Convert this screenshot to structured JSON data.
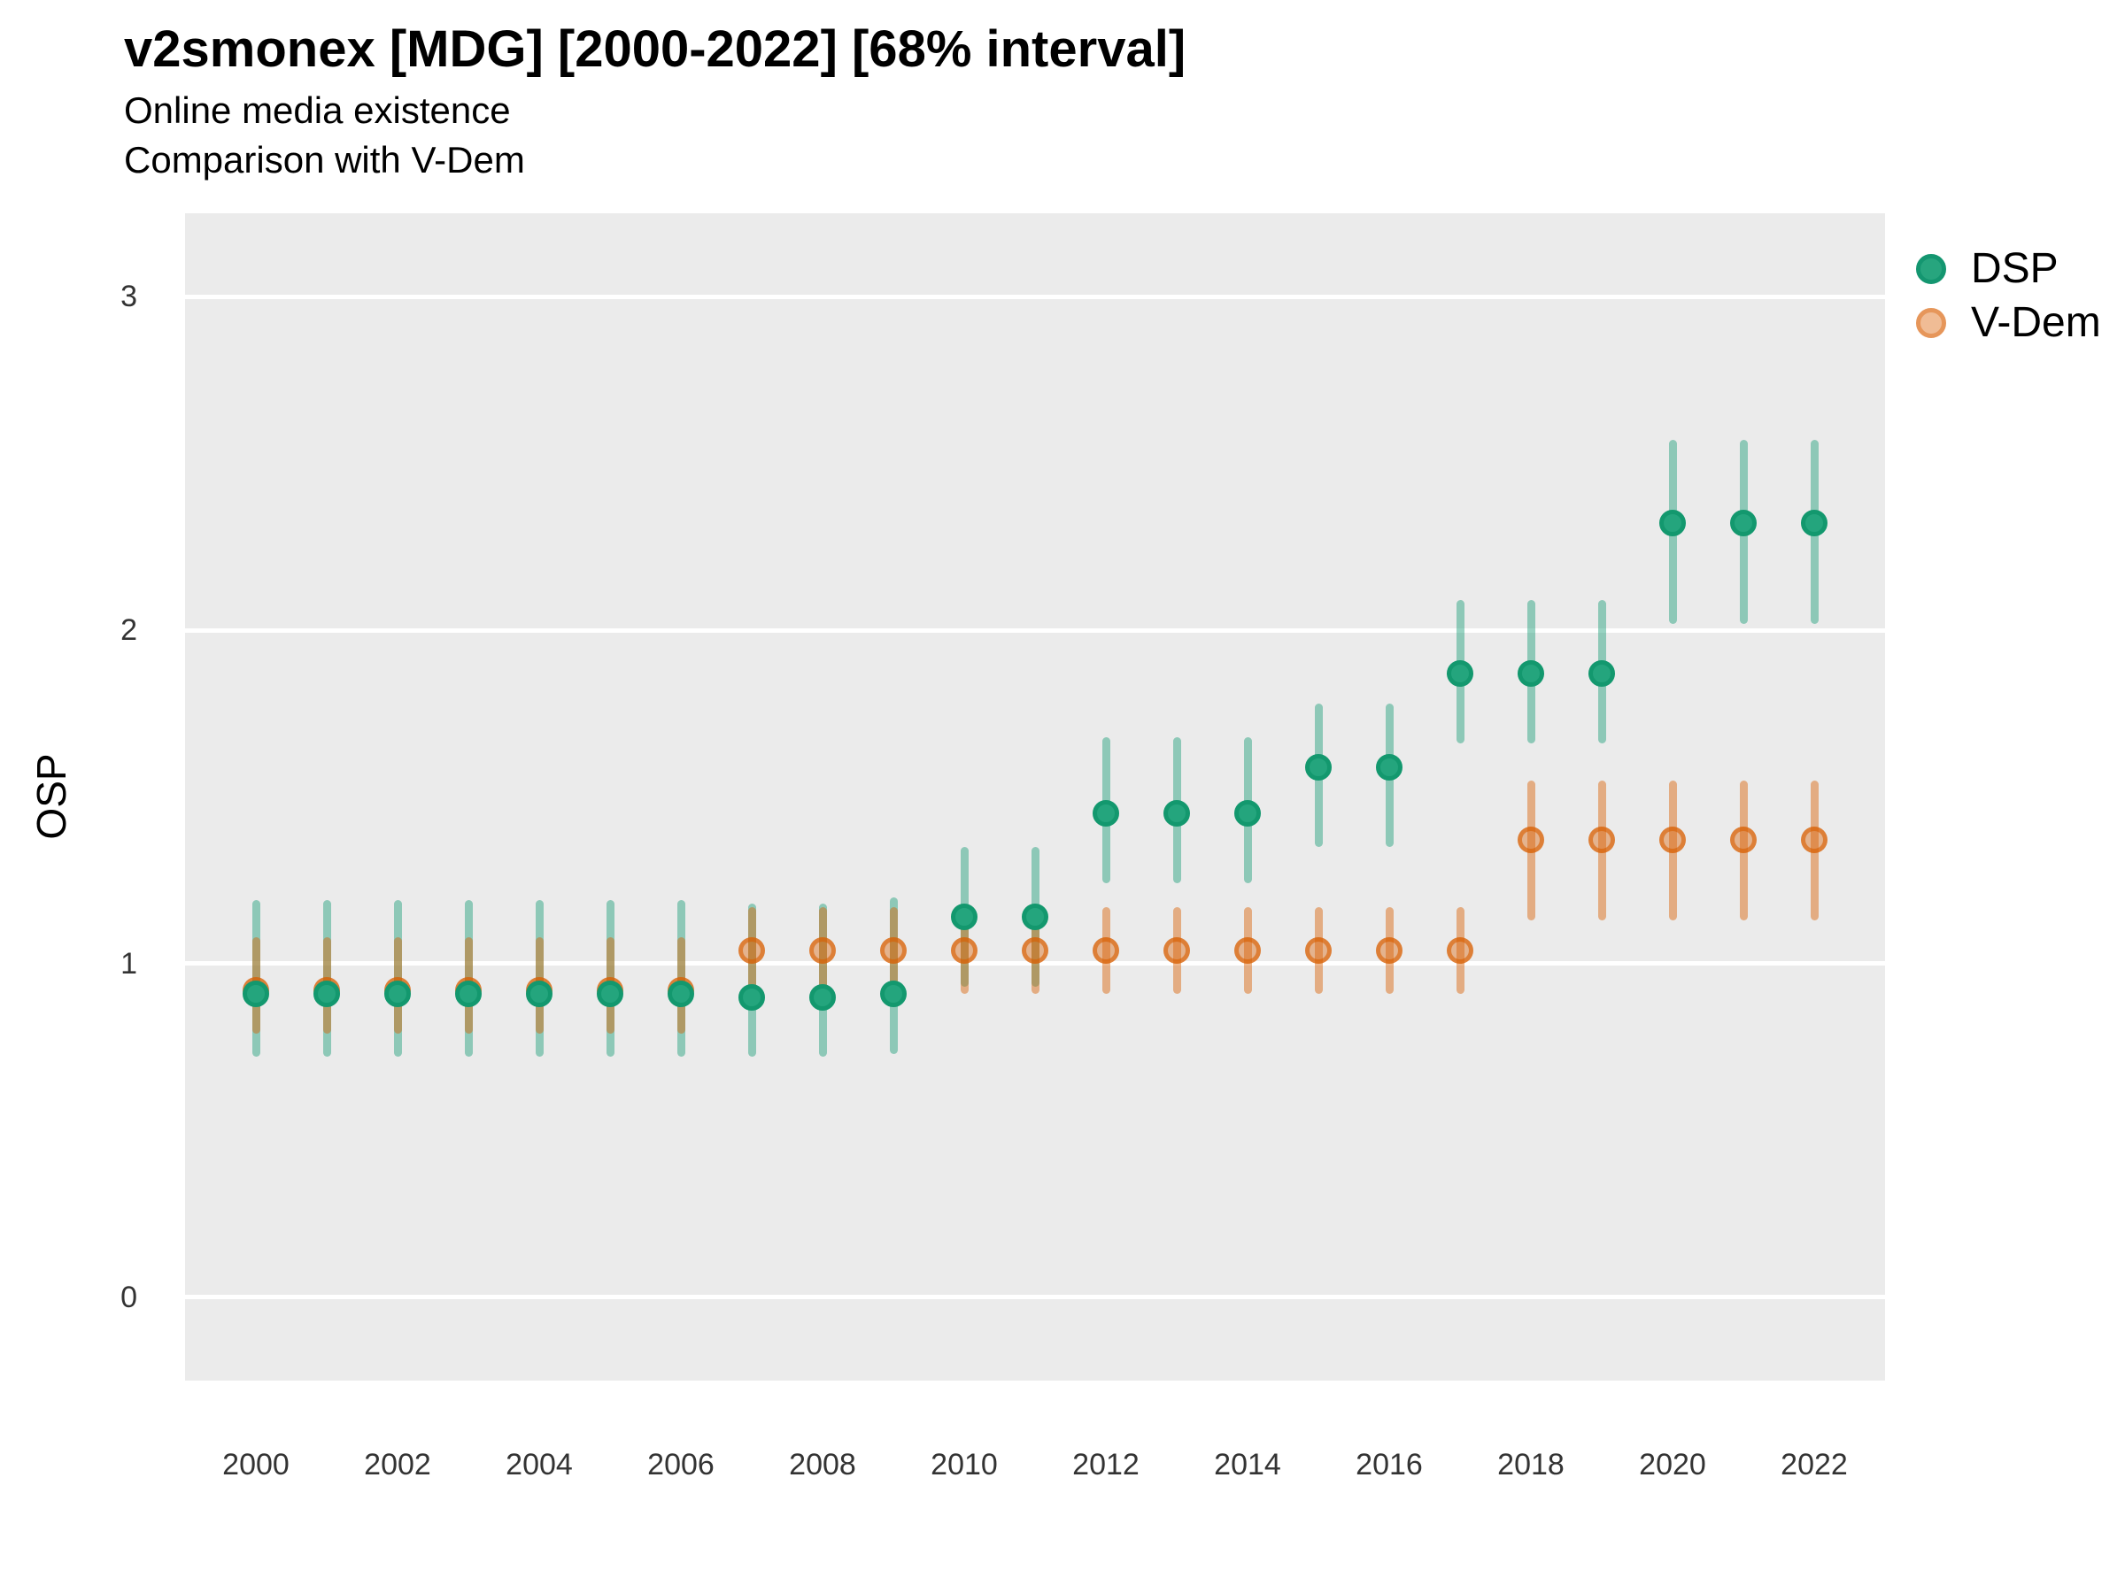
{
  "header": {
    "title": "v2smonex [MDG] [2000-2022] [68% interval]",
    "subtitle1": "Online media existence",
    "subtitle2": "Comparison with V-Dem"
  },
  "y_axis_title": "OSP",
  "legend": {
    "items": [
      {
        "label": "DSP"
      },
      {
        "label": "V-Dem"
      }
    ]
  },
  "colors": {
    "dsp": "#1B9E77",
    "vdem": "#D95F02",
    "panel_bg": "#EBEBEB",
    "gridline": "#FFFFFF",
    "axis_text": "#333333"
  },
  "chart_data": {
    "type": "scatter",
    "subtype": "pointrange",
    "title": "v2smonex [MDG] [2000-2022] [68% interval]",
    "subtitle": "Online media existence / Comparison with V-Dem",
    "interval": "68%",
    "xlabel": "",
    "ylabel": "OSP",
    "xlim": [
      1999,
      2023
    ],
    "ylim": [
      -0.25,
      3.25
    ],
    "yticks": [
      0,
      1,
      2,
      3
    ],
    "xticks": [
      2000,
      2002,
      2004,
      2006,
      2008,
      2010,
      2012,
      2014,
      2016,
      2018,
      2020,
      2022
    ],
    "grid": "major-horizontal-white-on-gray",
    "legend_position": "right-top",
    "x": [
      2000,
      2001,
      2002,
      2003,
      2004,
      2005,
      2006,
      2007,
      2008,
      2009,
      2010,
      2011,
      2012,
      2013,
      2014,
      2015,
      2016,
      2017,
      2018,
      2019,
      2020,
      2021,
      2022
    ],
    "series": [
      {
        "name": "DSP",
        "color": "#1B9E77",
        "est": [
          0.91,
          0.91,
          0.91,
          0.91,
          0.91,
          0.91,
          0.91,
          0.9,
          0.9,
          0.91,
          1.14,
          1.14,
          1.45,
          1.45,
          1.45,
          1.59,
          1.59,
          1.87,
          1.87,
          1.87,
          2.32,
          2.32,
          2.32
        ],
        "lo": [
          0.72,
          0.72,
          0.72,
          0.72,
          0.72,
          0.72,
          0.72,
          0.72,
          0.72,
          0.73,
          0.93,
          0.93,
          1.24,
          1.24,
          1.24,
          1.35,
          1.35,
          1.66,
          1.66,
          1.66,
          2.02,
          2.02,
          2.02
        ],
        "hi": [
          1.19,
          1.19,
          1.19,
          1.19,
          1.19,
          1.19,
          1.19,
          1.18,
          1.18,
          1.2,
          1.35,
          1.35,
          1.68,
          1.68,
          1.68,
          1.78,
          1.78,
          2.09,
          2.09,
          2.09,
          2.57,
          2.57,
          2.57
        ]
      },
      {
        "name": "V-Dem",
        "color": "#D95F02",
        "est": [
          0.92,
          0.92,
          0.92,
          0.92,
          0.92,
          0.92,
          0.92,
          1.04,
          1.04,
          1.04,
          1.04,
          1.04,
          1.04,
          1.04,
          1.04,
          1.04,
          1.04,
          1.04,
          1.37,
          1.37,
          1.37,
          1.37,
          1.37
        ],
        "lo": [
          0.79,
          0.79,
          0.79,
          0.79,
          0.79,
          0.79,
          0.79,
          0.91,
          0.91,
          0.91,
          0.91,
          0.91,
          0.91,
          0.91,
          0.91,
          0.91,
          0.91,
          0.91,
          1.13,
          1.13,
          1.13,
          1.13,
          1.13
        ],
        "hi": [
          1.08,
          1.08,
          1.08,
          1.08,
          1.08,
          1.08,
          1.08,
          1.17,
          1.17,
          1.17,
          1.17,
          1.17,
          1.17,
          1.17,
          1.17,
          1.17,
          1.17,
          1.17,
          1.55,
          1.55,
          1.55,
          1.55,
          1.55
        ]
      }
    ]
  }
}
